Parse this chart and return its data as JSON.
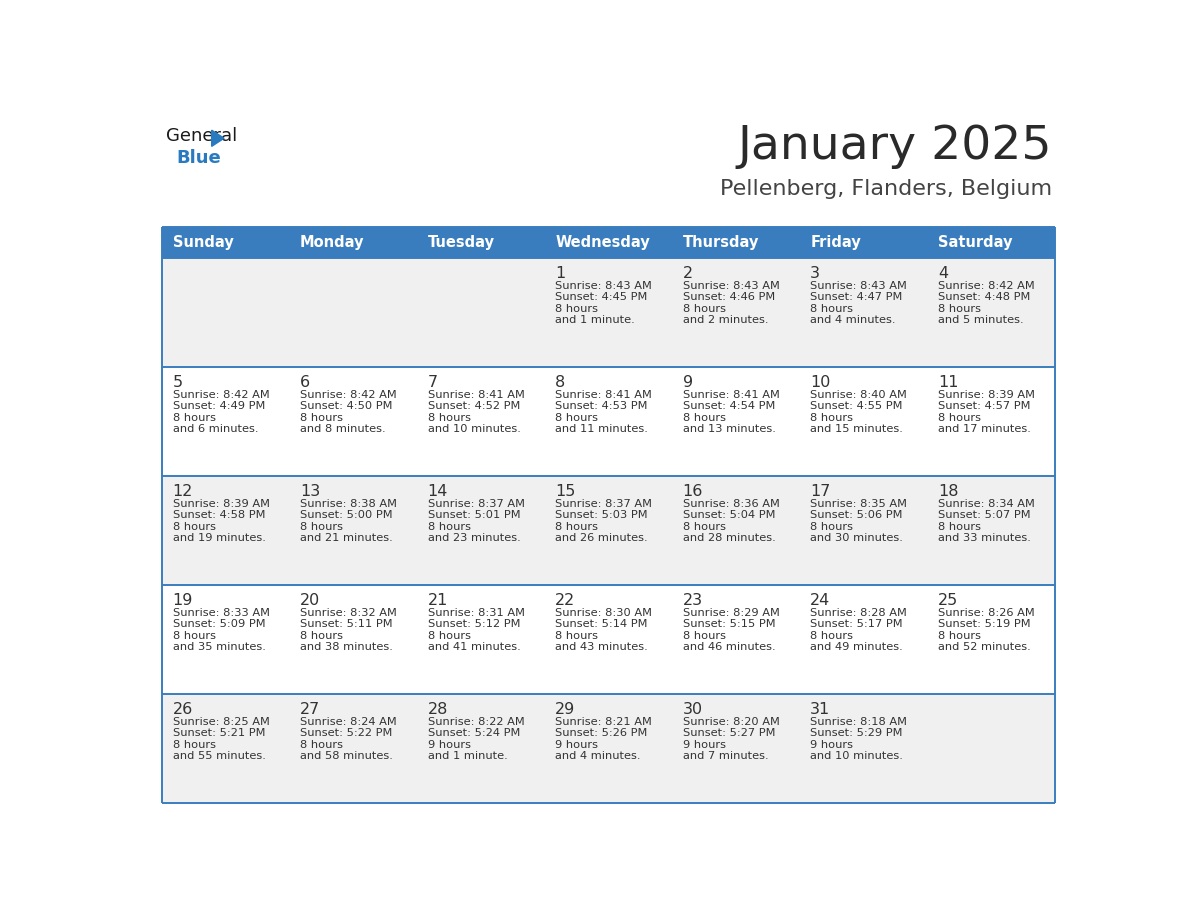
{
  "title": "January 2025",
  "subtitle": "Pellenberg, Flanders, Belgium",
  "days_of_week": [
    "Sunday",
    "Monday",
    "Tuesday",
    "Wednesday",
    "Thursday",
    "Friday",
    "Saturday"
  ],
  "header_bg": "#3a7dbf",
  "header_text": "#ffffff",
  "row_bg_odd": "#f0f0f0",
  "row_bg_even": "#ffffff",
  "cell_text_color": "#333333",
  "day_num_color": "#333333",
  "line_color": "#3a7dbf",
  "title_color": "#2a2a2a",
  "subtitle_color": "#444444",
  "logo_general_color": "#1a1a1a",
  "logo_blue_color": "#2a7abf",
  "calendar_data": [
    [
      null,
      null,
      null,
      {
        "day": 1,
        "sunrise": "8:43 AM",
        "sunset": "4:45 PM",
        "daylight": "8 hours\nand 1 minute."
      },
      {
        "day": 2,
        "sunrise": "8:43 AM",
        "sunset": "4:46 PM",
        "daylight": "8 hours\nand 2 minutes."
      },
      {
        "day": 3,
        "sunrise": "8:43 AM",
        "sunset": "4:47 PM",
        "daylight": "8 hours\nand 4 minutes."
      },
      {
        "day": 4,
        "sunrise": "8:42 AM",
        "sunset": "4:48 PM",
        "daylight": "8 hours\nand 5 minutes."
      }
    ],
    [
      {
        "day": 5,
        "sunrise": "8:42 AM",
        "sunset": "4:49 PM",
        "daylight": "8 hours\nand 6 minutes."
      },
      {
        "day": 6,
        "sunrise": "8:42 AM",
        "sunset": "4:50 PM",
        "daylight": "8 hours\nand 8 minutes."
      },
      {
        "day": 7,
        "sunrise": "8:41 AM",
        "sunset": "4:52 PM",
        "daylight": "8 hours\nand 10 minutes."
      },
      {
        "day": 8,
        "sunrise": "8:41 AM",
        "sunset": "4:53 PM",
        "daylight": "8 hours\nand 11 minutes."
      },
      {
        "day": 9,
        "sunrise": "8:41 AM",
        "sunset": "4:54 PM",
        "daylight": "8 hours\nand 13 minutes."
      },
      {
        "day": 10,
        "sunrise": "8:40 AM",
        "sunset": "4:55 PM",
        "daylight": "8 hours\nand 15 minutes."
      },
      {
        "day": 11,
        "sunrise": "8:39 AM",
        "sunset": "4:57 PM",
        "daylight": "8 hours\nand 17 minutes."
      }
    ],
    [
      {
        "day": 12,
        "sunrise": "8:39 AM",
        "sunset": "4:58 PM",
        "daylight": "8 hours\nand 19 minutes."
      },
      {
        "day": 13,
        "sunrise": "8:38 AM",
        "sunset": "5:00 PM",
        "daylight": "8 hours\nand 21 minutes."
      },
      {
        "day": 14,
        "sunrise": "8:37 AM",
        "sunset": "5:01 PM",
        "daylight": "8 hours\nand 23 minutes."
      },
      {
        "day": 15,
        "sunrise": "8:37 AM",
        "sunset": "5:03 PM",
        "daylight": "8 hours\nand 26 minutes."
      },
      {
        "day": 16,
        "sunrise": "8:36 AM",
        "sunset": "5:04 PM",
        "daylight": "8 hours\nand 28 minutes."
      },
      {
        "day": 17,
        "sunrise": "8:35 AM",
        "sunset": "5:06 PM",
        "daylight": "8 hours\nand 30 minutes."
      },
      {
        "day": 18,
        "sunrise": "8:34 AM",
        "sunset": "5:07 PM",
        "daylight": "8 hours\nand 33 minutes."
      }
    ],
    [
      {
        "day": 19,
        "sunrise": "8:33 AM",
        "sunset": "5:09 PM",
        "daylight": "8 hours\nand 35 minutes."
      },
      {
        "day": 20,
        "sunrise": "8:32 AM",
        "sunset": "5:11 PM",
        "daylight": "8 hours\nand 38 minutes."
      },
      {
        "day": 21,
        "sunrise": "8:31 AM",
        "sunset": "5:12 PM",
        "daylight": "8 hours\nand 41 minutes."
      },
      {
        "day": 22,
        "sunrise": "8:30 AM",
        "sunset": "5:14 PM",
        "daylight": "8 hours\nand 43 minutes."
      },
      {
        "day": 23,
        "sunrise": "8:29 AM",
        "sunset": "5:15 PM",
        "daylight": "8 hours\nand 46 minutes."
      },
      {
        "day": 24,
        "sunrise": "8:28 AM",
        "sunset": "5:17 PM",
        "daylight": "8 hours\nand 49 minutes."
      },
      {
        "day": 25,
        "sunrise": "8:26 AM",
        "sunset": "5:19 PM",
        "daylight": "8 hours\nand 52 minutes."
      }
    ],
    [
      {
        "day": 26,
        "sunrise": "8:25 AM",
        "sunset": "5:21 PM",
        "daylight": "8 hours\nand 55 minutes."
      },
      {
        "day": 27,
        "sunrise": "8:24 AM",
        "sunset": "5:22 PM",
        "daylight": "8 hours\nand 58 minutes."
      },
      {
        "day": 28,
        "sunrise": "8:22 AM",
        "sunset": "5:24 PM",
        "daylight": "9 hours\nand 1 minute."
      },
      {
        "day": 29,
        "sunrise": "8:21 AM",
        "sunset": "5:26 PM",
        "daylight": "9 hours\nand 4 minutes."
      },
      {
        "day": 30,
        "sunrise": "8:20 AM",
        "sunset": "5:27 PM",
        "daylight": "9 hours\nand 7 minutes."
      },
      {
        "day": 31,
        "sunrise": "8:18 AM",
        "sunset": "5:29 PM",
        "daylight": "9 hours\nand 10 minutes."
      },
      null
    ]
  ]
}
